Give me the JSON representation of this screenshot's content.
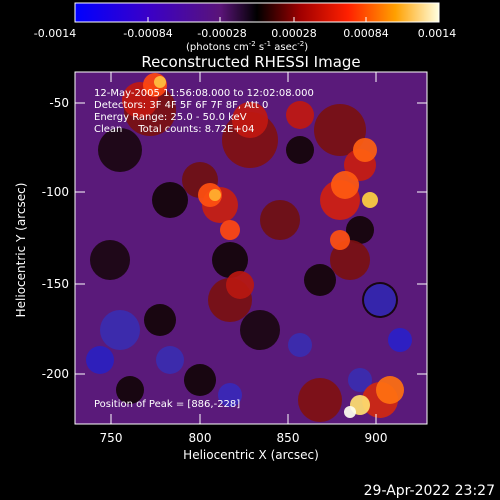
{
  "colorbar": {
    "ticks": [
      "-0.0014",
      "-0.00084",
      "-0.00028",
      "0.00028",
      "0.00084",
      "0.0014"
    ],
    "units_main": "(photons cm",
    "units_sup1": "-2",
    "units_mid1": " s",
    "units_sup2": "-1",
    "units_mid2": " asec",
    "units_sup3": "-2",
    "units_end": ")"
  },
  "image": {
    "title": "Reconstructed RHESSI Image",
    "xlabel": "Heliocentric X (arcsec)",
    "ylabel": "Heliocentric Y (arcsec)",
    "x_ticks": [
      "750",
      "800",
      "850",
      "900"
    ],
    "y_ticks": [
      "-50",
      "-100",
      "-150",
      "-200"
    ],
    "annotations": [
      "12-May-2005 11:56:08.000 to 12:02:08.000",
      "Detectors: 3F 4F 5F 6F 7F 8F, Att 0",
      "Energy Range: 25.0 - 50.0 keV",
      "Clean     Total counts: 8.72E+04"
    ],
    "peak": "Position of Peak = [886,-228]"
  },
  "timestamp": "29-Apr-2022 23:27"
}
